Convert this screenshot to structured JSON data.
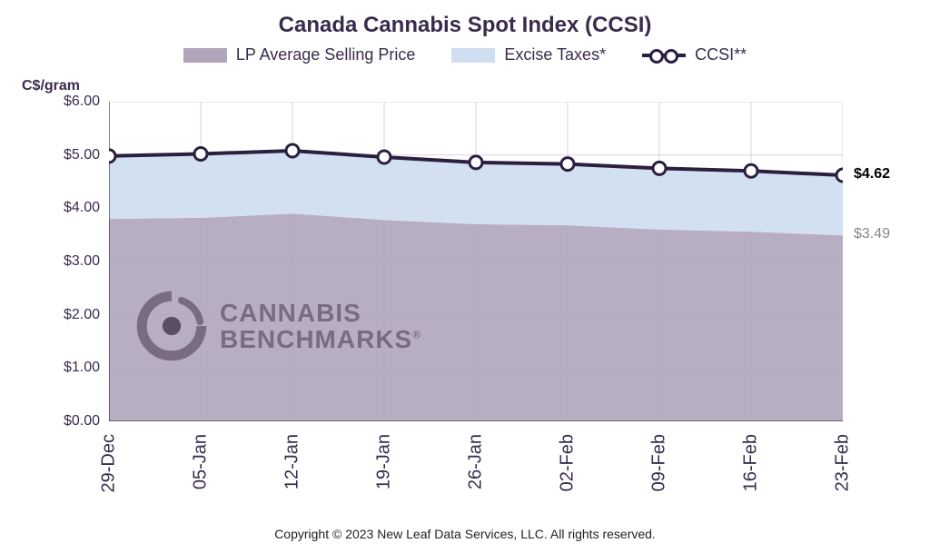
{
  "title": "Canada Cannabis Spot Index (CCSI)",
  "y_axis_label": "C$/gram",
  "legend": {
    "lp": {
      "label": "LP Average Selling Price",
      "color": "#b0a5bb"
    },
    "tax": {
      "label": "Excise Taxes*",
      "color": "#d1def1"
    },
    "ccsi": {
      "label": "CCSI**",
      "line_color": "#2b1f3f",
      "marker_fill": "#ffffff"
    }
  },
  "chart": {
    "type": "area+line",
    "background_color": "#ffffff",
    "grid_color": "#d8d2df",
    "axis_color": "#3a2b4d",
    "ylim": [
      0,
      6
    ],
    "yticks": [
      0,
      1,
      2,
      3,
      4,
      5,
      6
    ],
    "ytick_labels": [
      "$0.00",
      "$1.00",
      "$2.00",
      "$3.00",
      "$4.00",
      "$5.00",
      "$6.00"
    ],
    "categories": [
      "29-Dec",
      "05-Jan",
      "12-Jan",
      "19-Jan",
      "26-Jan",
      "02-Feb",
      "09-Feb",
      "16-Feb",
      "23-Feb"
    ],
    "series": {
      "lp_avg_price": [
        3.8,
        3.82,
        3.9,
        3.78,
        3.7,
        3.68,
        3.6,
        3.56,
        3.49
      ],
      "excise_taxes": [
        1.18,
        1.2,
        1.18,
        1.18,
        1.16,
        1.15,
        1.15,
        1.14,
        1.13
      ],
      "ccsi": [
        4.98,
        5.02,
        5.08,
        4.96,
        4.86,
        4.83,
        4.75,
        4.7,
        4.62
      ]
    },
    "line_width": 4,
    "marker_radius": 7,
    "marker_stroke": 3,
    "fontsize_title": 24,
    "fontsize_ticks": 16,
    "fontsize_xticks": 20
  },
  "annotations": {
    "ccsi_last": "$4.62",
    "lp_last": "$3.49"
  },
  "watermark": {
    "line1": "CANNABIS",
    "line2": "BENCHMARKS",
    "reg": "®",
    "icon_color": "#5a4d6a"
  },
  "copyright": "Copyright © 2023 New Leaf Data Services, LLC. All rights reserved."
}
